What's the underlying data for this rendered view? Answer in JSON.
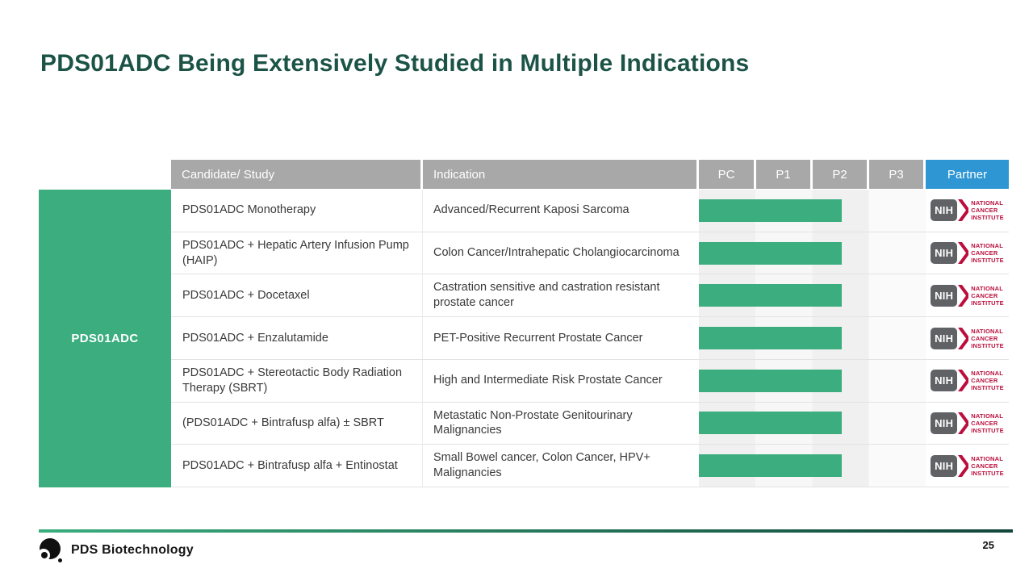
{
  "slide": {
    "title": "PDS01ADC Being Extensively Studied in Multiple Indications",
    "page_number": "25"
  },
  "colors": {
    "title_green": "#1C5347",
    "accent_green": "#3BAD7E",
    "header_gray": "#A8A8A8",
    "partner_blue": "#2E96D3",
    "nci_red": "#BB0E3C",
    "nih_box_gray": "#606266",
    "footer_gradient": [
      "#3BAD7E",
      "#12463A"
    ]
  },
  "table": {
    "row_group_label": "PDS01ADC",
    "headers": {
      "candidate": "Candidate/ Study",
      "indication": "Indication",
      "pc": "PC",
      "p1": "P1",
      "p2": "P2",
      "p3": "P3",
      "partner": "Partner"
    },
    "partner_logo": {
      "box": "NIH",
      "lines": [
        "NATIONAL",
        "CANCER",
        "INSTITUTE"
      ],
      "name": "NIH National Cancer Institute"
    },
    "rows": [
      {
        "candidate": "PDS01ADC Monotherapy",
        "indication": "Advanced/Recurrent Kaposi Sarcoma",
        "phase_progress": "PC through mid-P2",
        "bar_percent": 63,
        "partner": "NIH National Cancer Institute"
      },
      {
        "candidate": "PDS01ADC + Hepatic Artery Infusion Pump (HAIP)",
        "indication": "Colon Cancer/Intrahepatic Cholangiocarcinoma",
        "phase_progress": "PC through mid-P2",
        "bar_percent": 63,
        "partner": "NIH National Cancer Institute"
      },
      {
        "candidate": "PDS01ADC + Docetaxel",
        "indication": "Castration sensitive and castration resistant prostate cancer",
        "phase_progress": "PC through mid-P2",
        "bar_percent": 63,
        "partner": "NIH National Cancer Institute"
      },
      {
        "candidate": "PDS01ADC + Enzalutamide",
        "indication": "PET-Positive Recurrent Prostate Cancer",
        "phase_progress": "PC through mid-P2",
        "bar_percent": 63,
        "partner": "NIH National Cancer Institute"
      },
      {
        "candidate": "PDS01ADC + Stereotactic Body Radiation Therapy (SBRT)",
        "indication": "High and Intermediate Risk Prostate Cancer",
        "phase_progress": "PC through mid-P2",
        "bar_percent": 63,
        "partner": "NIH National Cancer Institute"
      },
      {
        "candidate": "(PDS01ADC + Bintrafusp alfa) ± SBRT",
        "indication": "Metastatic Non-Prostate Genitourinary Malignancies",
        "phase_progress": "PC through mid-P2",
        "bar_percent": 63,
        "partner": "NIH National Cancer Institute"
      },
      {
        "candidate": "PDS01ADC + Bintrafusp alfa + Entinostat",
        "indication": "Small Bowel cancer, Colon Cancer, HPV+ Malignancies",
        "phase_progress": "PC through mid-P2",
        "bar_percent": 63,
        "partner": "NIH National Cancer Institute"
      }
    ]
  },
  "footer": {
    "brand": "PDS Biotechnology"
  }
}
